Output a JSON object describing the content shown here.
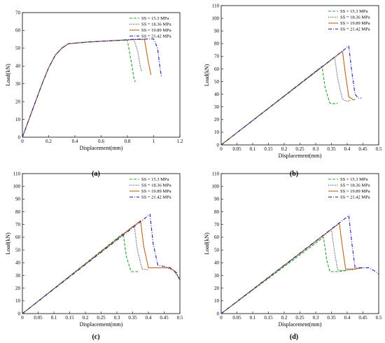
{
  "chart_data": [
    {
      "panel_label": "(a)",
      "type": "line",
      "xlabel": "Displacement(mm)",
      "ylabel": "Load(kN)",
      "xlim": [
        0,
        1.2
      ],
      "ylim": [
        0,
        70
      ],
      "xticks": [
        "0",
        "0.2",
        "0.4",
        "0.6",
        "0.8",
        "1",
        "1.2"
      ],
      "yticks": [
        "0",
        "10",
        "20",
        "30",
        "40",
        "50",
        "60",
        "70"
      ],
      "legend_position": "top-right",
      "grid": false,
      "series": [
        {
          "name": "SS = 15.3 MPa",
          "color": "#2ca02c",
          "dash": "dashed",
          "x": [
            0,
            0.05,
            0.1,
            0.15,
            0.2,
            0.25,
            0.3,
            0.35,
            0.5,
            0.7,
            0.8,
            0.83,
            0.85,
            0.86
          ],
          "y": [
            0,
            10,
            20,
            30,
            39,
            46,
            50,
            52.5,
            53.5,
            54.3,
            54.5,
            42,
            33,
            31
          ]
        },
        {
          "name": "SS = 18.36 MPa",
          "color": "#333333",
          "dash": "dotted",
          "x": [
            0,
            0.05,
            0.1,
            0.15,
            0.2,
            0.25,
            0.3,
            0.35,
            0.5,
            0.7,
            0.85,
            0.88,
            0.9,
            0.91
          ],
          "y": [
            0,
            10,
            20,
            30,
            39,
            46,
            50,
            52.5,
            53.5,
            54.3,
            54.8,
            48,
            39,
            37
          ]
        },
        {
          "name": "SS = 19.89 MPa",
          "color": "#b5651d",
          "dash": "solid",
          "x": [
            0,
            0.05,
            0.1,
            0.15,
            0.2,
            0.25,
            0.3,
            0.35,
            0.5,
            0.7,
            0.85,
            0.93,
            0.96,
            0.98
          ],
          "y": [
            0,
            10,
            20,
            30,
            39,
            46,
            50,
            52.5,
            53.5,
            54.3,
            54.9,
            55,
            42,
            35
          ]
        },
        {
          "name": "SS = 21.42 MPa",
          "color": "#1f1fb4",
          "dash": "dashdot",
          "x": [
            0,
            0.05,
            0.1,
            0.15,
            0.2,
            0.25,
            0.3,
            0.35,
            0.5,
            0.7,
            0.85,
            1.0,
            1.03,
            1.05,
            1.06
          ],
          "y": [
            0,
            10,
            20,
            30,
            39,
            46,
            50,
            52.5,
            53.5,
            54.3,
            55,
            55.2,
            50,
            38,
            34
          ]
        }
      ]
    },
    {
      "panel_label": "(b)",
      "type": "line",
      "xlabel": "Displacement(mm)",
      "ylabel": "Load(kN)",
      "xlim": [
        0,
        0.5
      ],
      "ylim": [
        0,
        110
      ],
      "xticks": [
        "0",
        "0.05",
        "0.1",
        "0.15",
        "0.2",
        "0.25",
        "0.3",
        "0.35",
        "0.4",
        "0.45",
        "0.5"
      ],
      "yticks": [
        "0",
        "10",
        "20",
        "30",
        "40",
        "50",
        "60",
        "70",
        "80",
        "90",
        "100",
        "110"
      ],
      "legend_position": "top-right",
      "grid": false,
      "series": [
        {
          "name": "SS = 15.3 MPa",
          "color": "#2ca02c",
          "dash": "dashed",
          "x": [
            0,
            0.32,
            0.33,
            0.345,
            0.36,
            0.37
          ],
          "y": [
            0,
            62,
            45,
            33,
            32.5,
            33
          ]
        },
        {
          "name": "SS = 18.36 MPa",
          "color": "#333333",
          "dash": "dotted",
          "x": [
            0,
            0.36,
            0.37,
            0.385,
            0.4,
            0.41
          ],
          "y": [
            0,
            69.5,
            52,
            36,
            34.5,
            35
          ]
        },
        {
          "name": "SS = 19.89 MPa",
          "color": "#b5651d",
          "dash": "solid",
          "x": [
            0,
            0.385,
            0.395,
            0.405,
            0.42,
            0.425
          ],
          "y": [
            0,
            74,
            55,
            38,
            35.5,
            36
          ]
        },
        {
          "name": "SS = 21.42 MPa",
          "color": "#1f1fb4",
          "dash": "dashdot",
          "x": [
            0,
            0.405,
            0.415,
            0.425,
            0.435,
            0.445
          ],
          "y": [
            0,
            78,
            57,
            40,
            37,
            37
          ]
        }
      ]
    },
    {
      "panel_label": "(c)",
      "type": "line",
      "xlabel": "Displacement(mm)",
      "ylabel": "Load(kN)",
      "xlim": [
        0,
        0.5
      ],
      "ylim": [
        0,
        110
      ],
      "xticks": [
        "0",
        "0.05",
        "0.1",
        "0.15",
        "0.2",
        "0.25",
        "0.3",
        "0.35",
        "0.4",
        "0.45",
        "0.5"
      ],
      "yticks": [
        "0",
        "10",
        "20",
        "30",
        "40",
        "50",
        "60",
        "70",
        "80",
        "90",
        "100",
        "110"
      ],
      "legend_position": "top-right",
      "grid": false,
      "series": [
        {
          "name": "SS = 15.3 MPa",
          "color": "#2ca02c",
          "dash": "dashed",
          "x": [
            0,
            0.32,
            0.33,
            0.345,
            0.37
          ],
          "y": [
            0,
            63,
            45,
            33,
            33
          ]
        },
        {
          "name": "SS = 18.36 MPa",
          "color": "#333333",
          "dash": "dotted",
          "x": [
            0,
            0.355,
            0.365,
            0.38,
            0.4
          ],
          "y": [
            0,
            69.5,
            50,
            35,
            34.5
          ]
        },
        {
          "name": "SS = 19.89 MPa",
          "color": "#b5651d",
          "dash": "solid",
          "x": [
            0,
            0.375,
            0.385,
            0.4,
            0.43,
            0.46,
            0.48,
            0.5
          ],
          "y": [
            0,
            73,
            53,
            36,
            36,
            36,
            34,
            27
          ]
        },
        {
          "name": "SS = 21.42 MPa",
          "color": "#1f1fb4",
          "dash": "dashdot",
          "x": [
            0,
            0.405,
            0.415,
            0.43,
            0.45,
            0.47,
            0.49,
            0.5
          ],
          "y": [
            0,
            78,
            55,
            38,
            37,
            36,
            32,
            26
          ]
        }
      ]
    },
    {
      "panel_label": "(d)",
      "type": "line",
      "xlabel": "Displacement(mm)",
      "ylabel": "Load(kN)",
      "xlim": [
        0,
        0.5
      ],
      "ylim": [
        0,
        110
      ],
      "xticks": [
        "0",
        "0.05",
        "0.1",
        "0.15",
        "0.2",
        "0.25",
        "0.3",
        "0.35",
        "0.4",
        "0.45",
        "0.5"
      ],
      "yticks": [
        "0",
        "10",
        "20",
        "30",
        "40",
        "50",
        "60",
        "70",
        "80",
        "90",
        "100",
        "110"
      ],
      "legend_position": "top-right",
      "grid": false,
      "series": [
        {
          "name": "SS = 15.3 MPa",
          "color": "#2ca02c",
          "dash": "dashed",
          "x": [
            0,
            0.325,
            0.335,
            0.345,
            0.37,
            0.4
          ],
          "y": [
            0,
            60,
            42,
            33,
            33,
            34
          ]
        },
        {
          "name": "SS = 18.36 MPa",
          "color": "#333333",
          "dash": "dotted",
          "x": [
            0,
            0.35,
            0.36,
            0.37,
            0.4,
            0.43
          ],
          "y": [
            0,
            66,
            48,
            34,
            34,
            35
          ]
        },
        {
          "name": "SS = 19.89 MPa",
          "color": "#b5651d",
          "dash": "solid",
          "x": [
            0,
            0.375,
            0.385,
            0.395,
            0.42,
            0.45
          ],
          "y": [
            0,
            71,
            52,
            35,
            35,
            36
          ]
        },
        {
          "name": "SS = 21.42 MPa",
          "color": "#1f1fb4",
          "dash": "dashdot",
          "x": [
            0,
            0.405,
            0.415,
            0.425,
            0.45,
            0.47,
            0.49,
            0.5
          ],
          "y": [
            0,
            77,
            55,
            36,
            36,
            36,
            33,
            31
          ]
        }
      ]
    }
  ]
}
